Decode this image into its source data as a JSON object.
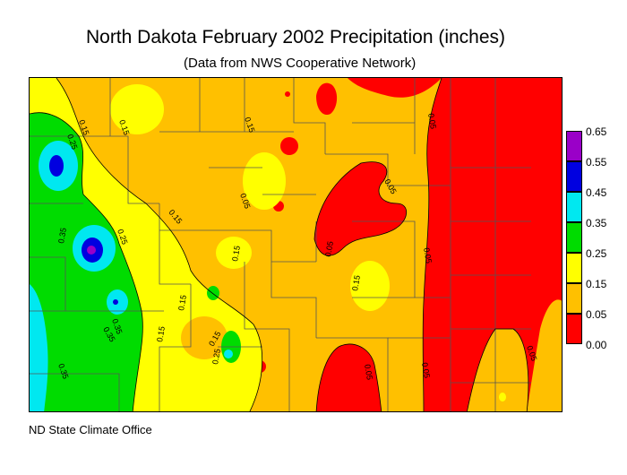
{
  "title": "North Dakota February 2002 Precipitation (inches)",
  "subtitle": "(Data from NWS Cooperative Network)",
  "footer": "ND State Climate Office",
  "legend": [
    {
      "label": "0.65",
      "color": "#9a00c8"
    },
    {
      "label": "0.55",
      "color": "#0000e0"
    },
    {
      "label": "0.45",
      "color": "#00e8f0"
    },
    {
      "label": "0.35",
      "color": "#00dc00"
    },
    {
      "label": "0.25",
      "color": "#ffff00"
    },
    {
      "label": "0.15",
      "color": "#ffc000"
    },
    {
      "label": "0.05",
      "color": "#ff0000"
    },
    {
      "label": "0.00",
      "color": ""
    }
  ],
  "contour_labels": [
    "0.15",
    "0.25",
    "0.15",
    "0.15",
    "0.05",
    "0.35",
    "0.25",
    "0.15",
    "0.15",
    "0.05",
    "0.05",
    "0.35",
    "0.15",
    "0.15",
    "0.15",
    "0.15",
    "0.25",
    "0.35",
    "0.05",
    "0.05",
    "0.05",
    "0.05",
    "0.35",
    "0.05"
  ]
}
